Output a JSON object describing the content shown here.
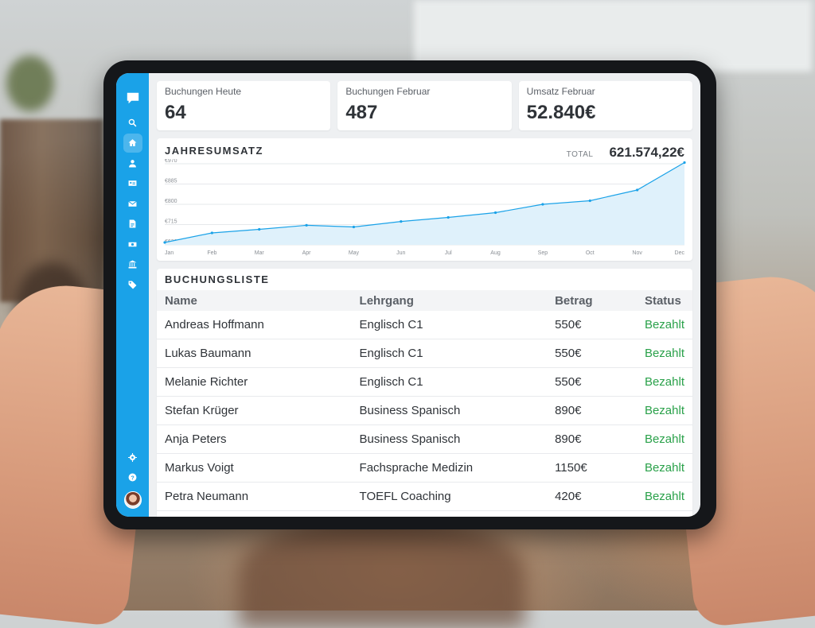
{
  "kpis": [
    {
      "label": "Buchungen Heute",
      "value": "64"
    },
    {
      "label": "Buchungen Februar",
      "value": "487"
    },
    {
      "label": "Umsatz Februar",
      "value": "52.840€"
    }
  ],
  "revenue": {
    "title": "JAHRESUMSATZ",
    "total_label": "TOTAL",
    "total_value": "621.574,22€"
  },
  "chart_data": {
    "type": "area",
    "x": [
      "Jan",
      "Feb",
      "Mar",
      "Apr",
      "May",
      "Jun",
      "Jul",
      "Aug",
      "Sep",
      "Oct",
      "Nov",
      "Dec"
    ],
    "values": [
      640,
      680,
      695,
      712,
      705,
      728,
      745,
      765,
      800,
      815,
      860,
      975
    ],
    "ylim": [
      630,
      970
    ],
    "ytick_labels": [
      "€970",
      "€885",
      "€800",
      "€715",
      "€630"
    ],
    "yticks": [
      970,
      885,
      800,
      715,
      630
    ],
    "grid": true,
    "color": "#1aa2e8"
  },
  "bookings": {
    "title": "BUCHUNGSLISTE",
    "columns": [
      "Name",
      "Lehrgang",
      "Betrag",
      "Status"
    ],
    "rows": [
      [
        "Andreas Hoffmann",
        "Englisch C1",
        "550€",
        "Bezahlt"
      ],
      [
        "Lukas Baumann",
        "Englisch C1",
        "550€",
        "Bezahlt"
      ],
      [
        "Melanie Richter",
        "Englisch C1",
        "550€",
        "Bezahlt"
      ],
      [
        "Stefan Krüger",
        "Business Spanisch",
        "890€",
        "Bezahlt"
      ],
      [
        "Anja Peters",
        "Business Spanisch",
        "890€",
        "Bezahlt"
      ],
      [
        "Markus Voigt",
        "Fachsprache Medizin",
        "1150€",
        "Bezahlt"
      ],
      [
        "Petra Neumann",
        "TOEFL Coaching",
        "420€",
        "Bezahlt"
      ]
    ]
  },
  "sidebar": {
    "icons": [
      "chat-logo-icon",
      "search-icon",
      "home-icon",
      "user-icon",
      "id-card-icon",
      "mail-icon",
      "document-icon",
      "money-icon",
      "bank-icon",
      "tag-icon"
    ],
    "bottom_icons": [
      "gear-icon",
      "help-icon"
    ],
    "accent": "#1aa2e8"
  },
  "status_color": "#2aa14a"
}
